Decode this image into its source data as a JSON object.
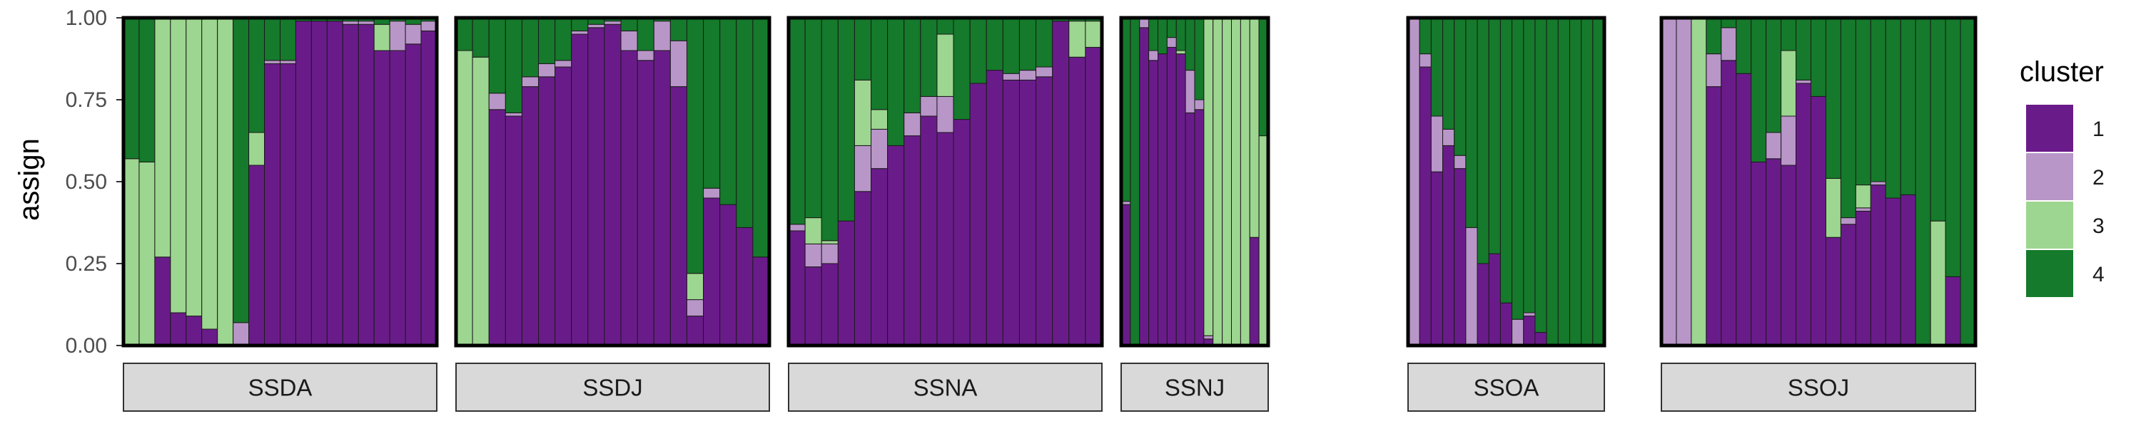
{
  "chart_data": {
    "type": "bar",
    "stacked": true,
    "xlabel": "",
    "ylabel": "assign",
    "ylim": [
      0,
      1
    ],
    "yticks": [
      "0.00",
      "0.25",
      "0.50",
      "0.75",
      "1.00"
    ],
    "legend": {
      "title": "cluster",
      "position": "right",
      "entries": [
        {
          "label": "1",
          "color": "#6a1b8a"
        },
        {
          "label": "2",
          "color": "#b896c8"
        },
        {
          "label": "3",
          "color": "#9dd690"
        },
        {
          "label": "4",
          "color": "#157a2b"
        }
      ]
    },
    "stack_order": [
      "1",
      "2",
      "3",
      "4"
    ],
    "panels": [
      {
        "label": "SSDA",
        "bars": [
          [
            0.0,
            0.0,
            0.57,
            0.43
          ],
          [
            0.0,
            0.0,
            0.56,
            0.44
          ],
          [
            0.27,
            0.0,
            0.73,
            0.0
          ],
          [
            0.1,
            0.0,
            0.9,
            0.0
          ],
          [
            0.09,
            0.0,
            0.91,
            0.0
          ],
          [
            0.05,
            0.0,
            0.95,
            0.0
          ],
          [
            0.0,
            0.0,
            1.0,
            0.0
          ],
          [
            0.0,
            0.07,
            0.0,
            0.93
          ],
          [
            0.55,
            0.0,
            0.1,
            0.35
          ],
          [
            0.86,
            0.01,
            0.0,
            0.13
          ],
          [
            0.86,
            0.01,
            0.0,
            0.13
          ],
          [
            0.99,
            0.0,
            0.0,
            0.01
          ],
          [
            0.99,
            0.0,
            0.0,
            0.01
          ],
          [
            0.99,
            0.0,
            0.0,
            0.01
          ],
          [
            0.98,
            0.01,
            0.0,
            0.01
          ],
          [
            0.98,
            0.01,
            0.0,
            0.01
          ],
          [
            0.9,
            0.0,
            0.08,
            0.02
          ],
          [
            0.9,
            0.09,
            0.0,
            0.01
          ],
          [
            0.92,
            0.06,
            0.0,
            0.02
          ],
          [
            0.96,
            0.03,
            0.0,
            0.01
          ]
        ]
      },
      {
        "label": "SSDJ",
        "bars": [
          [
            0.0,
            0.0,
            0.9,
            0.1
          ],
          [
            0.0,
            0.0,
            0.88,
            0.12
          ],
          [
            0.72,
            0.05,
            0.0,
            0.23
          ],
          [
            0.7,
            0.01,
            0.0,
            0.29
          ],
          [
            0.79,
            0.03,
            0.0,
            0.18
          ],
          [
            0.82,
            0.04,
            0.0,
            0.14
          ],
          [
            0.85,
            0.02,
            0.0,
            0.13
          ],
          [
            0.95,
            0.01,
            0.0,
            0.04
          ],
          [
            0.97,
            0.01,
            0.0,
            0.02
          ],
          [
            0.98,
            0.01,
            0.0,
            0.01
          ],
          [
            0.9,
            0.06,
            0.0,
            0.04
          ],
          [
            0.87,
            0.03,
            0.0,
            0.1
          ],
          [
            0.9,
            0.09,
            0.0,
            0.01
          ],
          [
            0.79,
            0.14,
            0.0,
            0.07
          ],
          [
            0.09,
            0.05,
            0.08,
            0.78
          ],
          [
            0.45,
            0.03,
            0.0,
            0.52
          ],
          [
            0.43,
            0.0,
            0.0,
            0.57
          ],
          [
            0.36,
            0.0,
            0.0,
            0.64
          ],
          [
            0.27,
            0.0,
            0.0,
            0.73
          ]
        ]
      },
      {
        "label": "SSNA",
        "bars": [
          [
            0.35,
            0.02,
            0.0,
            0.63
          ],
          [
            0.24,
            0.07,
            0.08,
            0.61
          ],
          [
            0.25,
            0.06,
            0.01,
            0.68
          ],
          [
            0.38,
            0.0,
            0.0,
            0.62
          ],
          [
            0.47,
            0.14,
            0.2,
            0.19
          ],
          [
            0.54,
            0.12,
            0.06,
            0.28
          ],
          [
            0.61,
            0.0,
            0.0,
            0.39
          ],
          [
            0.64,
            0.07,
            0.0,
            0.29
          ],
          [
            0.7,
            0.06,
            0.0,
            0.24
          ],
          [
            0.65,
            0.11,
            0.19,
            0.05
          ],
          [
            0.69,
            0.0,
            0.0,
            0.31
          ],
          [
            0.8,
            0.0,
            0.0,
            0.2
          ],
          [
            0.84,
            0.0,
            0.0,
            0.16
          ],
          [
            0.81,
            0.02,
            0.0,
            0.17
          ],
          [
            0.81,
            0.03,
            0.0,
            0.16
          ],
          [
            0.82,
            0.03,
            0.0,
            0.15
          ],
          [
            0.99,
            0.0,
            0.0,
            0.01
          ],
          [
            0.88,
            0.0,
            0.11,
            0.01
          ],
          [
            0.91,
            0.0,
            0.08,
            0.01
          ]
        ]
      },
      {
        "label": "SSNJ",
        "bars": [
          [
            0.43,
            0.01,
            0.0,
            0.56
          ],
          [
            0.0,
            0.0,
            0.0,
            1.0
          ],
          [
            0.97,
            0.03,
            0.0,
            0.0
          ],
          [
            0.87,
            0.03,
            0.0,
            0.1
          ],
          [
            0.89,
            0.0,
            0.0,
            0.11
          ],
          [
            0.91,
            0.03,
            0.0,
            0.06
          ],
          [
            0.89,
            0.0,
            0.01,
            0.1
          ],
          [
            0.71,
            0.13,
            0.0,
            0.16
          ],
          [
            0.72,
            0.03,
            0.0,
            0.25
          ],
          [
            0.02,
            0.01,
            0.97,
            0.0
          ],
          [
            0.0,
            0.0,
            1.0,
            0.0
          ],
          [
            0.0,
            0.0,
            1.0,
            0.0
          ],
          [
            0.0,
            0.0,
            1.0,
            0.0
          ],
          [
            0.0,
            0.0,
            1.0,
            0.0
          ],
          [
            0.33,
            0.0,
            0.67,
            0.0
          ],
          [
            0.0,
            0.0,
            0.64,
            0.36
          ]
        ]
      },
      {
        "label": "SSOA",
        "bars": [
          [
            0.0,
            1.0,
            0.0,
            0.0
          ],
          [
            0.85,
            0.04,
            0.0,
            0.11
          ],
          [
            0.53,
            0.17,
            0.0,
            0.3
          ],
          [
            0.61,
            0.05,
            0.0,
            0.34
          ],
          [
            0.54,
            0.04,
            0.0,
            0.42
          ],
          [
            0.0,
            0.36,
            0.0,
            0.64
          ],
          [
            0.25,
            0.0,
            0.0,
            0.75
          ],
          [
            0.28,
            0.0,
            0.0,
            0.72
          ],
          [
            0.13,
            0.0,
            0.0,
            0.87
          ],
          [
            0.0,
            0.08,
            0.0,
            0.92
          ],
          [
            0.09,
            0.01,
            0.0,
            0.9
          ],
          [
            0.04,
            0.0,
            0.0,
            0.96
          ],
          [
            0.0,
            0.0,
            0.0,
            1.0
          ],
          [
            0.0,
            0.0,
            0.0,
            1.0
          ],
          [
            0.0,
            0.0,
            0.0,
            1.0
          ],
          [
            0.0,
            0.0,
            0.0,
            1.0
          ],
          [
            0.0,
            0.0,
            0.0,
            1.0
          ]
        ]
      },
      {
        "label": "SSOJ",
        "bars": [
          [
            0.0,
            1.0,
            0.0,
            0.0
          ],
          [
            0.0,
            1.0,
            0.0,
            0.0
          ],
          [
            0.0,
            0.0,
            1.0,
            0.0
          ],
          [
            0.79,
            0.1,
            0.0,
            0.11
          ],
          [
            0.87,
            0.1,
            0.0,
            0.03
          ],
          [
            0.83,
            0.0,
            0.0,
            0.17
          ],
          [
            0.56,
            0.0,
            0.0,
            0.44
          ],
          [
            0.57,
            0.08,
            0.0,
            0.35
          ],
          [
            0.55,
            0.15,
            0.2,
            0.1
          ],
          [
            0.8,
            0.01,
            0.0,
            0.19
          ],
          [
            0.76,
            0.0,
            0.0,
            0.24
          ],
          [
            0.33,
            0.0,
            0.18,
            0.49
          ],
          [
            0.37,
            0.02,
            0.0,
            0.61
          ],
          [
            0.41,
            0.01,
            0.07,
            0.51
          ],
          [
            0.49,
            0.01,
            0.0,
            0.5
          ],
          [
            0.45,
            0.0,
            0.0,
            0.55
          ],
          [
            0.46,
            0.0,
            0.0,
            0.54
          ],
          [
            0.0,
            0.0,
            0.0,
            1.0
          ],
          [
            0.0,
            0.0,
            0.38,
            0.62
          ],
          [
            0.21,
            0.0,
            0.0,
            0.79
          ],
          [
            0.0,
            0.0,
            0.0,
            1.0
          ]
        ]
      }
    ]
  }
}
